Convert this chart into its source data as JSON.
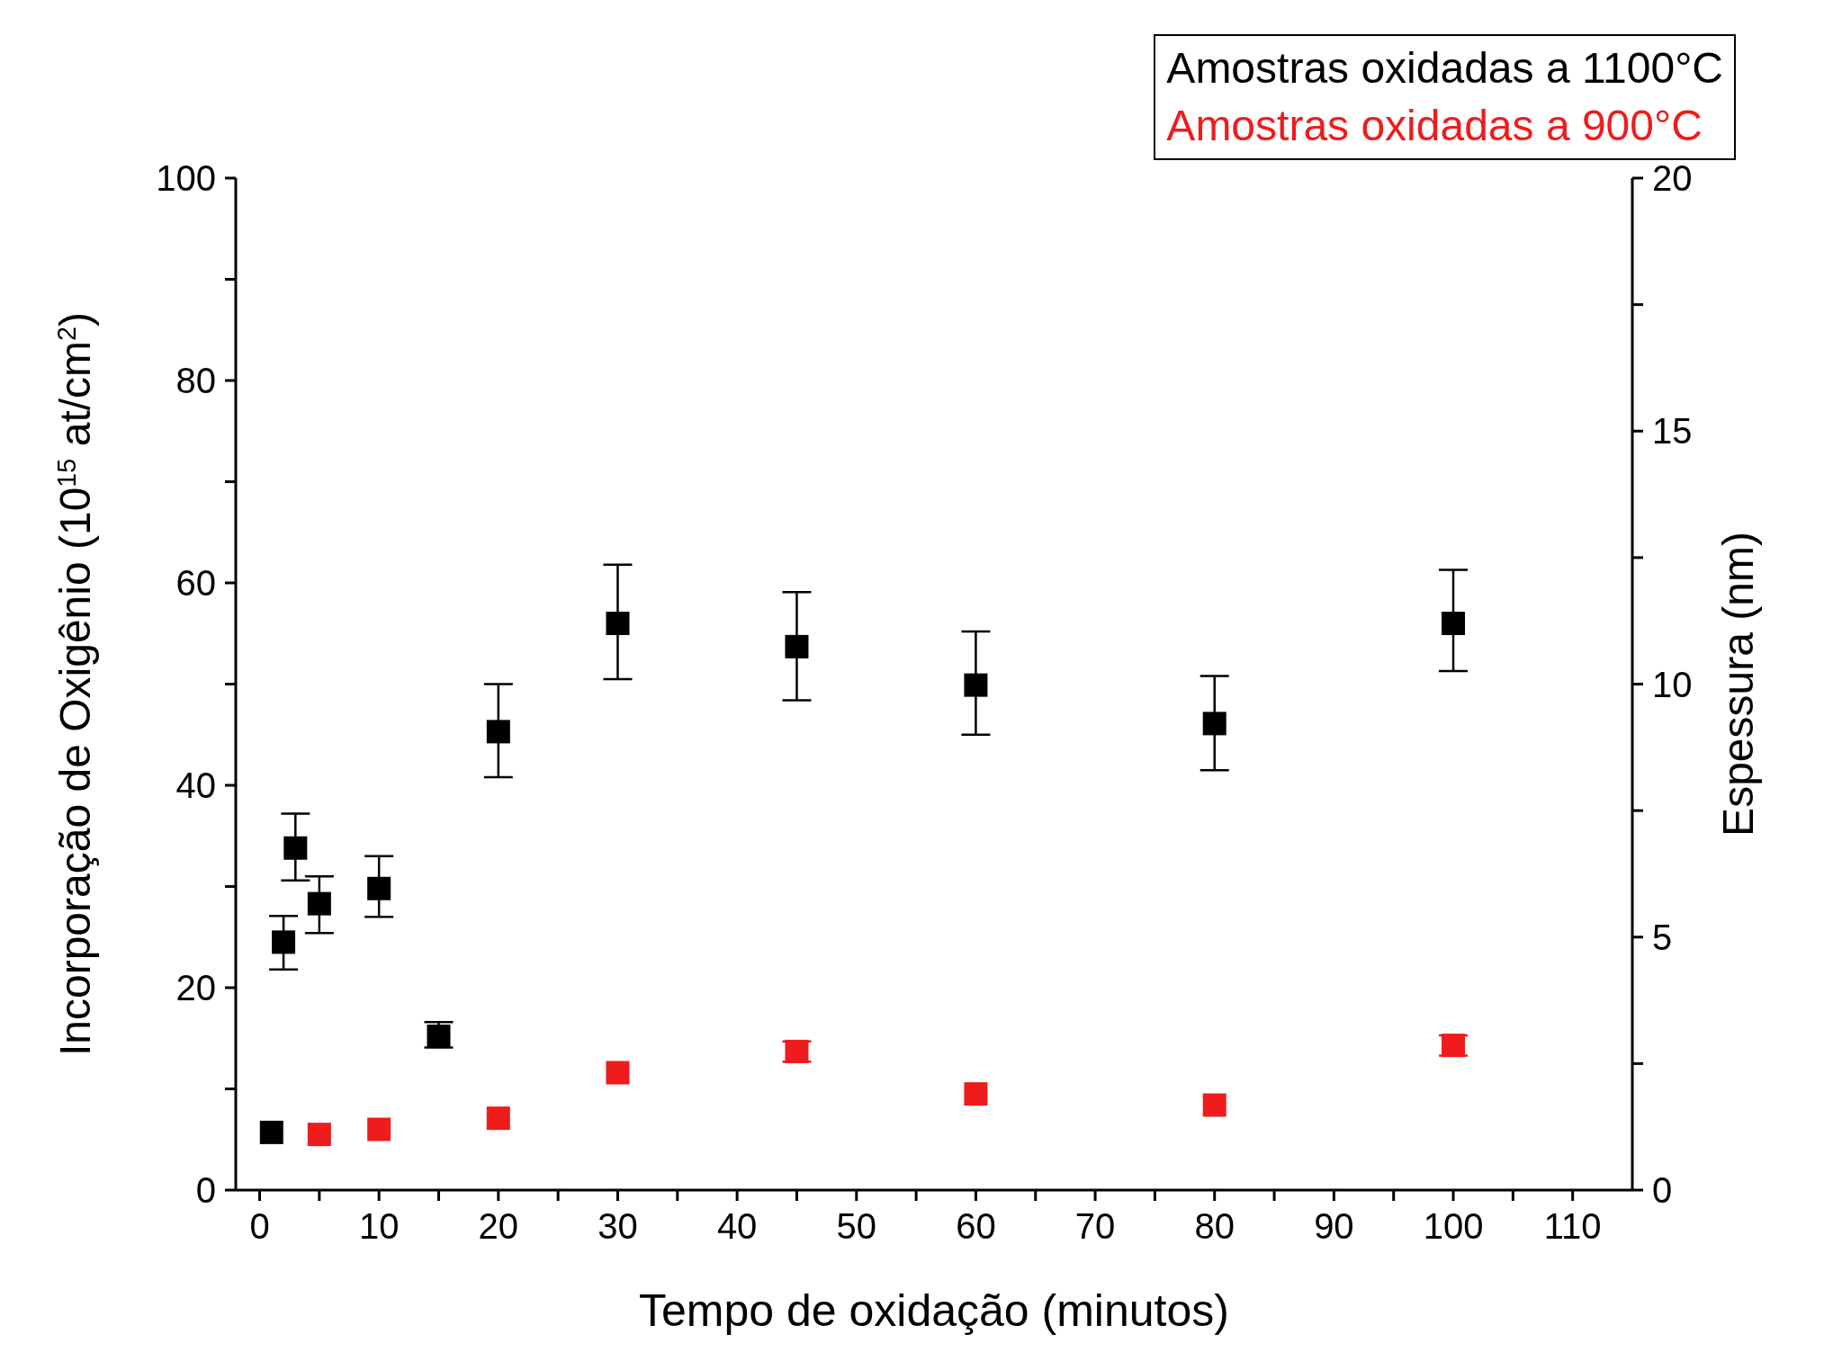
{
  "chart_data": {
    "type": "scatter",
    "xlabel": "Tempo de oxidação (minutos)",
    "ylabel": "Incorporação de Oxigênio (10$^{15}$ at/cm$^{2}$)",
    "y2label": "Espessura (nm)",
    "series": [
      {
        "name": "Amostras oxidadas a 1100°C",
        "color": "#000000",
        "x": [
          1,
          2,
          3,
          5,
          10,
          15,
          20,
          30,
          45,
          60,
          80,
          100
        ],
        "values": [
          5.7,
          24.5,
          33.8,
          28.3,
          29.8,
          15.2,
          45.3,
          56,
          53.7,
          49.9,
          46.1,
          56
        ],
        "errors": [
          null,
          [
            21.8,
            27.1
          ],
          [
            30.6,
            37.2
          ],
          [
            25.4,
            31
          ],
          [
            27,
            33
          ],
          [
            14.1,
            16.6
          ],
          [
            40.8,
            50
          ],
          [
            50.5,
            61.8
          ],
          [
            48.4,
            59.1
          ],
          [
            45,
            55.2
          ],
          [
            41.5,
            50.8
          ],
          [
            51.3,
            61.3
          ]
        ]
      },
      {
        "name": "Amostras oxidadas a 900°C",
        "color": "#ee1c1c",
        "x": [
          5,
          10,
          20,
          30,
          45,
          60,
          80,
          100
        ],
        "values": [
          5.5,
          6,
          7.1,
          11.6,
          13.7,
          9.5,
          8.4,
          14.3
        ],
        "errors": [
          null,
          null,
          null,
          null,
          1,
          null,
          null,
          1
        ]
      }
    ],
    "xlim": [
      -2,
      115
    ],
    "xticks": [
      0,
      {
        "value": 5,
        "label": null
      },
      10,
      {
        "value": 15,
        "label": null
      },
      20,
      {
        "value": 25,
        "label": null
      },
      30,
      {
        "value": 35,
        "label": null
      },
      40,
      {
        "value": 45,
        "label": null
      },
      50,
      {
        "value": 55,
        "label": null
      },
      60,
      {
        "value": 65,
        "label": null
      },
      70,
      {
        "value": 75,
        "label": null
      },
      80,
      {
        "value": 85,
        "label": null
      },
      90,
      {
        "value": 95,
        "label": null
      },
      100,
      {
        "value": 105,
        "label": null
      },
      110
    ],
    "ylim": [
      0,
      100
    ],
    "yticks": [
      0,
      {
        "value": 10,
        "label": null
      },
      20,
      {
        "value": 30,
        "label": null
      },
      40,
      {
        "value": 50,
        "label": null
      },
      60,
      {
        "value": 70,
        "label": null
      },
      80,
      {
        "value": 90,
        "label": null
      },
      100
    ],
    "y2lim": [
      0,
      20
    ],
    "y2ticks": [
      0,
      {
        "value": 2.5,
        "label": null
      },
      5,
      {
        "value": 7.5,
        "label": null
      },
      10,
      {
        "value": 12.5,
        "label": null
      },
      15,
      {
        "value": 17.5,
        "label": null
      },
      20
    ],
    "marker": "square",
    "legend": "top right"
  }
}
